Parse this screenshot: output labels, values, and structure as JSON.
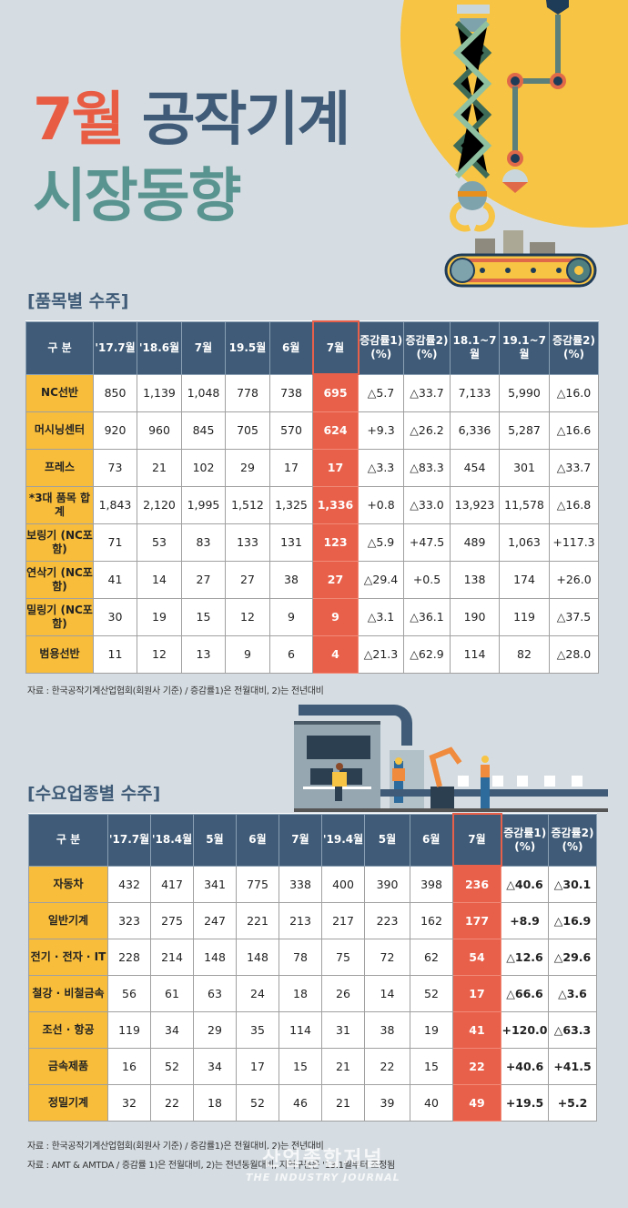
{
  "title": {
    "month": "7월",
    "line1_rest": "공작기계",
    "line2": "시장동향"
  },
  "colors": {
    "background": "#d6dde2",
    "accent_red": "#e9604a",
    "navy": "#3f5b77",
    "teal": "#5a9490",
    "label_yellow": "#f7bd3b",
    "sun_yellow": "#f7c443"
  },
  "section1": {
    "title": "[품목별 수주]",
    "headers": [
      "구 분",
      "'17.7월",
      "'18.6월",
      "7월",
      "19.5월",
      "6월",
      "7월",
      "증감률1) (%)",
      "증감률2) (%)",
      "18.1~7월",
      "19.1~7월",
      "증감률2) (%)"
    ],
    "rows": [
      {
        "label": "NC선반",
        "values": [
          "850",
          "1,139",
          "1,048",
          "778",
          "738",
          "695",
          "△5.7",
          "△33.7",
          "7,133",
          "5,990",
          "△16.0"
        ]
      },
      {
        "label": "머시닝센터",
        "values": [
          "920",
          "960",
          "845",
          "705",
          "570",
          "624",
          "+9.3",
          "△26.2",
          "6,336",
          "5,287",
          "△16.6"
        ]
      },
      {
        "label": "프레스",
        "values": [
          "73",
          "21",
          "102",
          "29",
          "17",
          "17",
          "△3.3",
          "△83.3",
          "454",
          "301",
          "△33.7"
        ]
      },
      {
        "label": "*3대 품목 합계",
        "values": [
          "1,843",
          "2,120",
          "1,995",
          "1,512",
          "1,325",
          "1,336",
          "+0.8",
          "△33.0",
          "13,923",
          "11,578",
          "△16.8"
        ]
      },
      {
        "label": "보링기 (NC포함)",
        "values": [
          "71",
          "53",
          "83",
          "133",
          "131",
          "123",
          "△5.9",
          "+47.5",
          "489",
          "1,063",
          "+117.3"
        ]
      },
      {
        "label": "연삭기 (NC포함)",
        "values": [
          "41",
          "14",
          "27",
          "27",
          "38",
          "27",
          "△29.4",
          "+0.5",
          "138",
          "174",
          "+26.0"
        ]
      },
      {
        "label": "밀링기 (NC포함)",
        "values": [
          "30",
          "19",
          "15",
          "12",
          "9",
          "9",
          "△3.1",
          "△36.1",
          "190",
          "119",
          "△37.5"
        ]
      },
      {
        "label": "범용선반",
        "values": [
          "11",
          "12",
          "13",
          "9",
          "6",
          "4",
          "△21.3",
          "△62.9",
          "114",
          "82",
          "△28.0"
        ]
      }
    ],
    "note": "자료 : 한국공작기계산업협회(회원사 기준) / 증감률1)은 전월대비, 2)는 전년대비"
  },
  "section2": {
    "title": "[수요업종별 수주]",
    "headers": [
      "구 분",
      "'17.7월",
      "'18.4월",
      "5월",
      "6월",
      "7월",
      "'19.4월",
      "5월",
      "6월",
      "7월",
      "증감률1) (%)",
      "증감률2) (%)"
    ],
    "rows": [
      {
        "label": "자동차",
        "values": [
          "432",
          "417",
          "341",
          "775",
          "338",
          "400",
          "390",
          "398",
          "236",
          "△40.6",
          "△30.1"
        ]
      },
      {
        "label": "일반기계",
        "values": [
          "323",
          "275",
          "247",
          "221",
          "213",
          "217",
          "223",
          "162",
          "177",
          "+8.9",
          "△16.9"
        ]
      },
      {
        "label": "전기 · 전자 · IT",
        "values": [
          "228",
          "214",
          "148",
          "148",
          "78",
          "75",
          "72",
          "62",
          "54",
          "△12.6",
          "△29.6"
        ]
      },
      {
        "label": "철강 · 비철금속",
        "values": [
          "56",
          "61",
          "63",
          "24",
          "18",
          "26",
          "14",
          "52",
          "17",
          "△66.6",
          "△3.6"
        ]
      },
      {
        "label": "조선 · 항공",
        "values": [
          "119",
          "34",
          "29",
          "35",
          "114",
          "31",
          "38",
          "19",
          "41",
          "+120.0",
          "△63.3"
        ]
      },
      {
        "label": "금속제품",
        "values": [
          "16",
          "52",
          "34",
          "17",
          "15",
          "21",
          "22",
          "15",
          "22",
          "+40.6",
          "+41.5"
        ]
      },
      {
        "label": "정밀기계",
        "values": [
          "32",
          "22",
          "18",
          "52",
          "46",
          "21",
          "39",
          "40",
          "49",
          "+19.5",
          "+5.2"
        ]
      }
    ],
    "notes": [
      "자료 : 한국공작기계산업협회(회원사 기준) / 증감률1)은 전월대비, 2)는 전년대비",
      "자료 : AMT & AMTDA / 증감률 1)은 전월대비, 2)는 전년동월대비, 지역구분은 '13.1월부터 조정됨"
    ]
  },
  "watermark": {
    "ko": "산업종합저널",
    "en": "THE INDUSTRY JOURNAL"
  },
  "illustrations": {
    "top_right": "robot-arms-conveyor-icon",
    "middle_right": "factory-workers-assembly-line-icon"
  }
}
